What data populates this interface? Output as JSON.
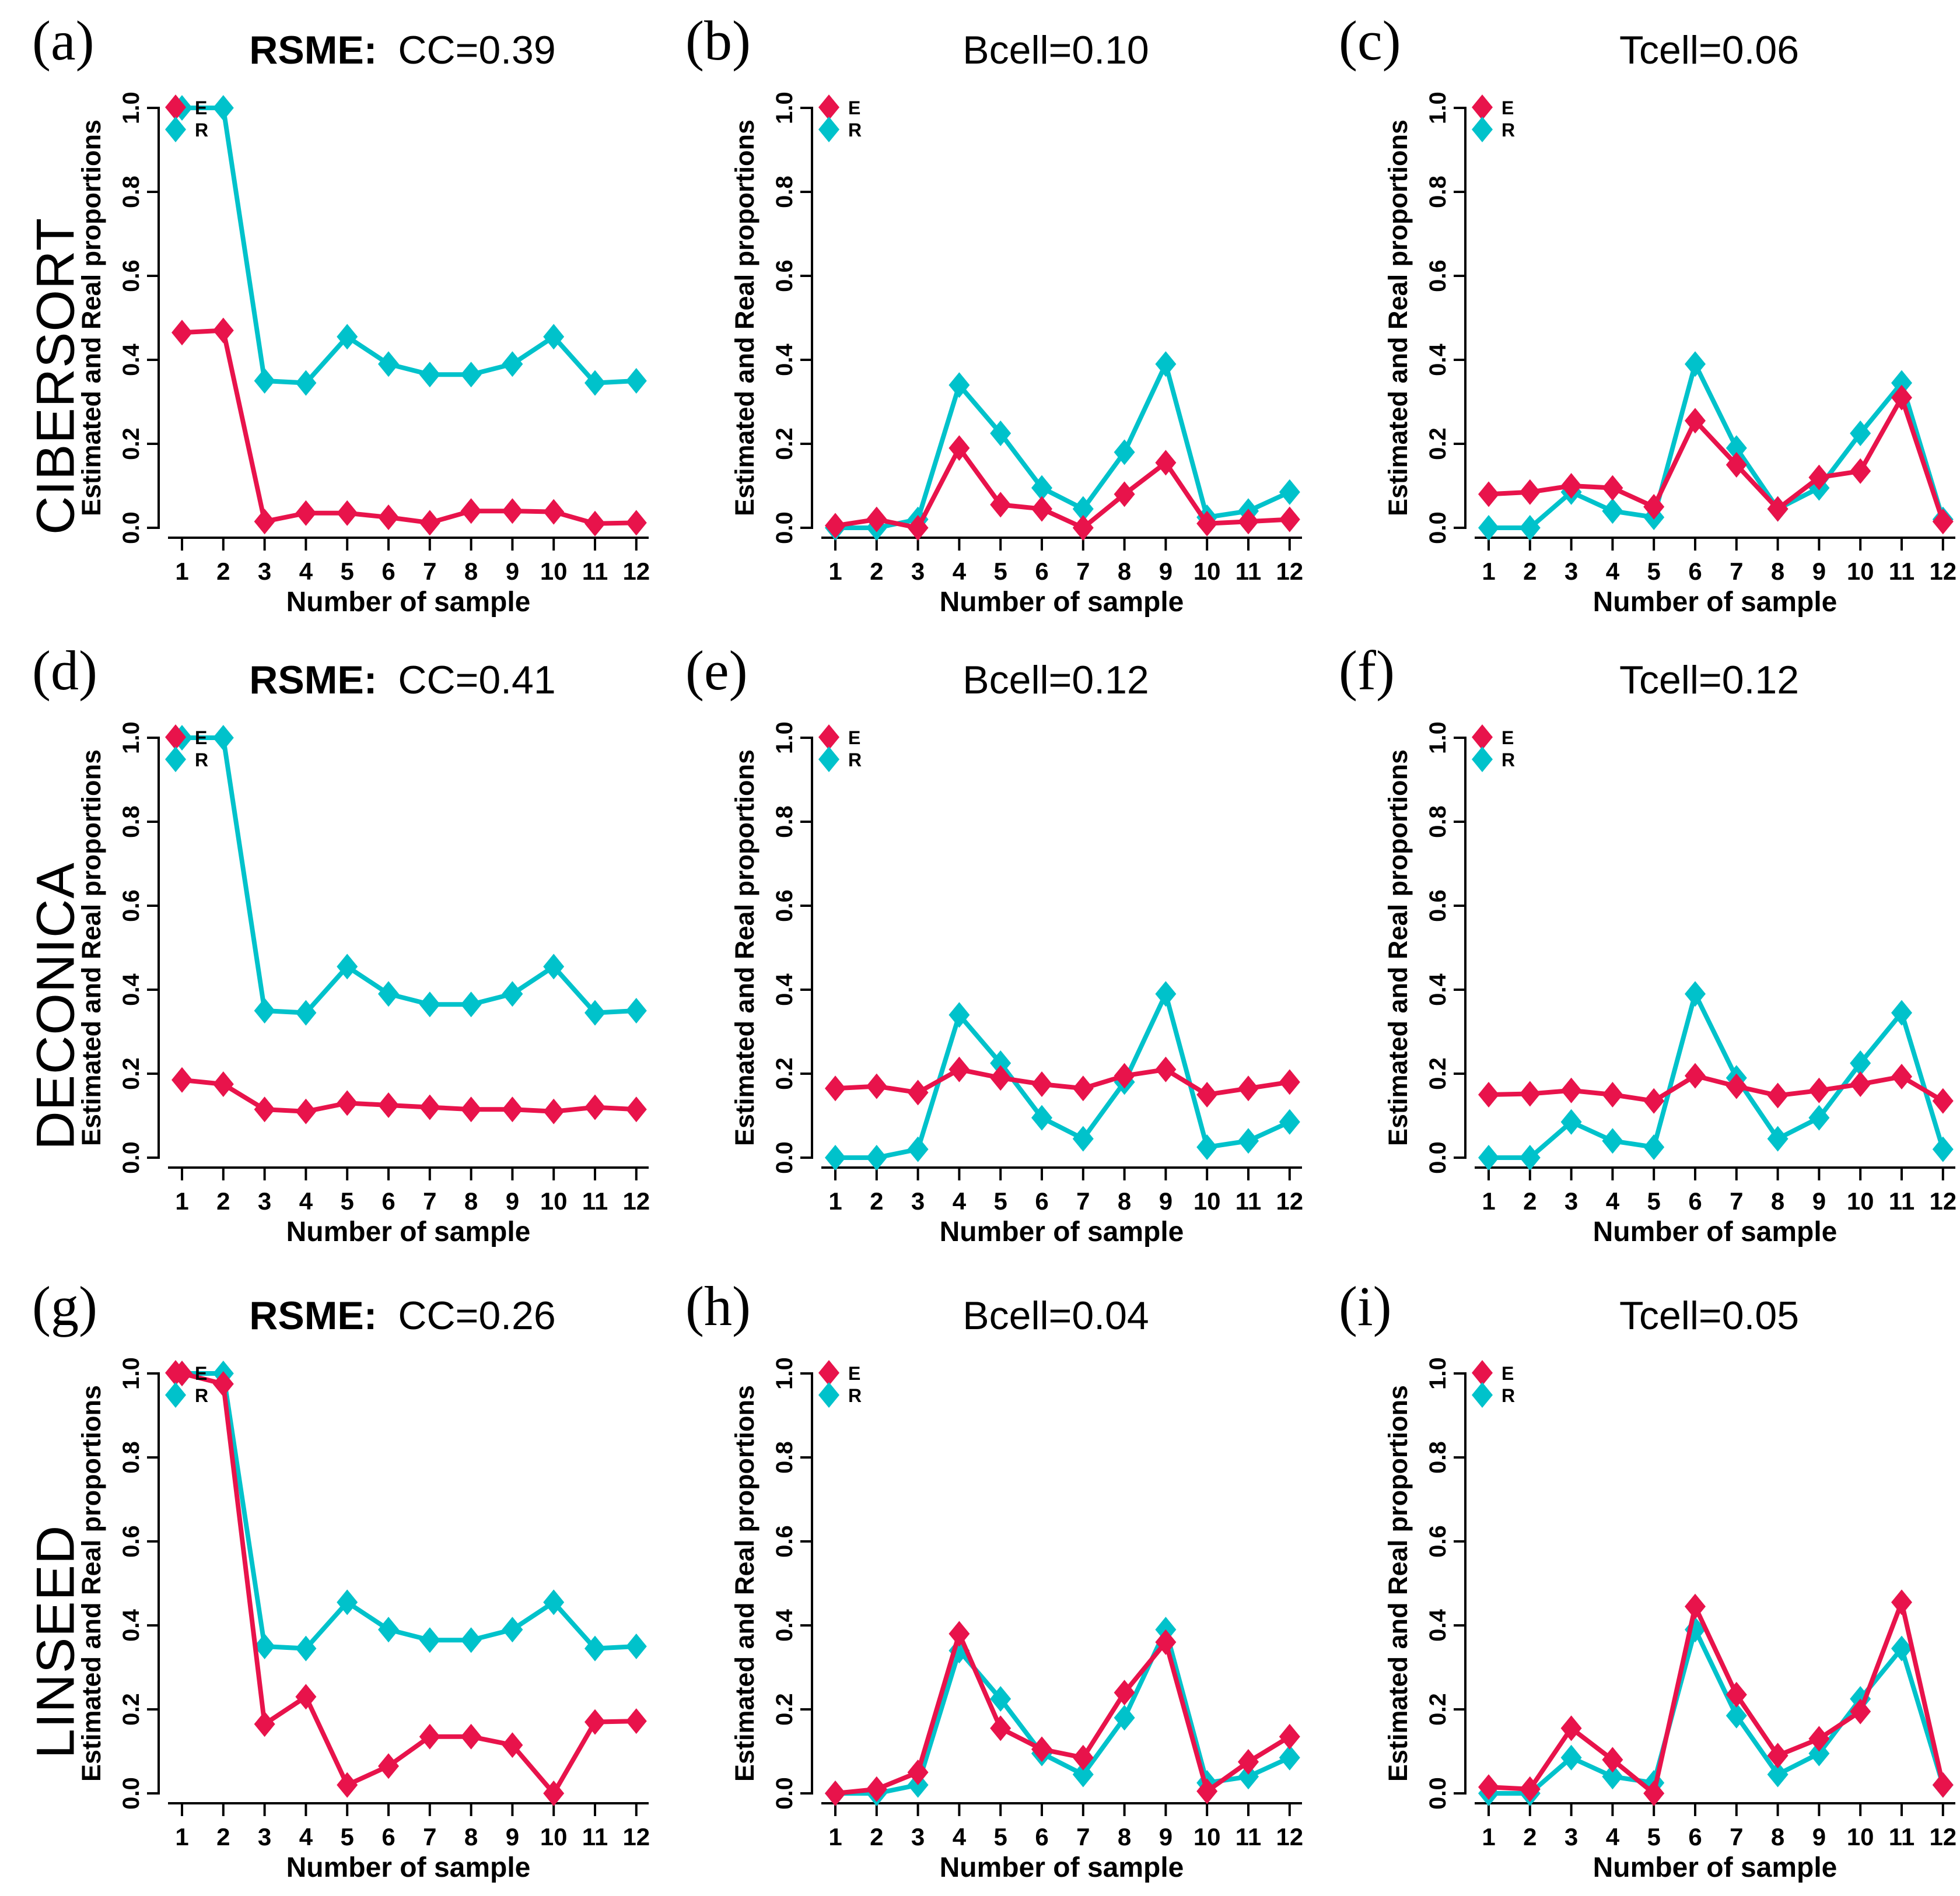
{
  "figure": {
    "background": "#ffffff",
    "colors": {
      "estimated": "#e8134b",
      "real": "#00c2cb",
      "text": "#000000"
    },
    "legend": [
      {
        "label": "E",
        "series": "estimated"
      },
      {
        "label": "R",
        "series": "real"
      }
    ],
    "axes": {
      "y_label": "Estimated and Real proportions",
      "x_label": "Number of sample",
      "y_ticks": [
        "0.0",
        "0.2",
        "0.4",
        "0.6",
        "0.8",
        "1.0"
      ],
      "x_ticks": [
        "1",
        "2",
        "3",
        "4",
        "5",
        "6",
        "7",
        "8",
        "9",
        "10",
        "11",
        "12"
      ],
      "y_range": [
        0,
        1
      ]
    },
    "rows": [
      {
        "label": "CIBERSORT"
      },
      {
        "label": "DECONICA"
      },
      {
        "label": "LINSEED"
      }
    ]
  },
  "chart_data": [
    {
      "id": "a",
      "letter": "(a)",
      "row": "CIBERSORT",
      "type": "line",
      "title_prefix": "RSME:",
      "title": "CC=0.39",
      "x": [
        1,
        2,
        3,
        4,
        5,
        6,
        7,
        8,
        9,
        10,
        11,
        12
      ],
      "xlabel": "Number of sample",
      "ylabel": "Estimated and Real proportions",
      "ylim": [
        0,
        1
      ],
      "legend_position": "top-left",
      "grid": false,
      "series": [
        {
          "name": "E",
          "color_key": "estimated",
          "values": [
            0.465,
            0.47,
            0.015,
            0.035,
            0.035,
            0.025,
            0.012,
            0.04,
            0.04,
            0.038,
            0.01,
            0.012
          ]
        },
        {
          "name": "R",
          "color_key": "real",
          "values": [
            1.0,
            1.0,
            0.35,
            0.345,
            0.455,
            0.39,
            0.365,
            0.365,
            0.39,
            0.455,
            0.345,
            0.35
          ]
        }
      ]
    },
    {
      "id": "b",
      "letter": "(b)",
      "row": "CIBERSORT",
      "type": "line",
      "title_prefix": "",
      "title": "Bcell=0.10",
      "x": [
        1,
        2,
        3,
        4,
        5,
        6,
        7,
        8,
        9,
        10,
        11,
        12
      ],
      "xlabel": "Number of sample",
      "ylabel": "Estimated and Real proportions",
      "ylim": [
        0,
        1
      ],
      "legend_position": "top-left",
      "grid": false,
      "series": [
        {
          "name": "E",
          "color_key": "estimated",
          "values": [
            0.005,
            0.02,
            0.0,
            0.19,
            0.055,
            0.045,
            0.0,
            0.08,
            0.155,
            0.01,
            0.015,
            0.02
          ]
        },
        {
          "name": "R",
          "color_key": "real",
          "values": [
            0.0,
            0.0,
            0.02,
            0.34,
            0.225,
            0.095,
            0.045,
            0.18,
            0.39,
            0.025,
            0.04,
            0.085
          ]
        }
      ]
    },
    {
      "id": "c",
      "letter": "(c)",
      "row": "CIBERSORT",
      "type": "line",
      "title_prefix": "",
      "title": "Tcell=0.06",
      "x": [
        1,
        2,
        3,
        4,
        5,
        6,
        7,
        8,
        9,
        10,
        11,
        12
      ],
      "xlabel": "Number of sample",
      "ylabel": "Estimated and Real proportions",
      "ylim": [
        0,
        1
      ],
      "legend_position": "top-left",
      "grid": false,
      "series": [
        {
          "name": "E",
          "color_key": "estimated",
          "values": [
            0.08,
            0.085,
            0.1,
            0.095,
            0.05,
            0.255,
            0.15,
            0.045,
            0.12,
            0.135,
            0.31,
            0.015
          ]
        },
        {
          "name": "R",
          "color_key": "real",
          "values": [
            0.0,
            0.0,
            0.085,
            0.04,
            0.025,
            0.39,
            0.19,
            0.045,
            0.095,
            0.225,
            0.345,
            0.02
          ]
        }
      ]
    },
    {
      "id": "d",
      "letter": "(d)",
      "row": "DECONICA",
      "type": "line",
      "title_prefix": "RSME:",
      "title": "CC=0.41",
      "x": [
        1,
        2,
        3,
        4,
        5,
        6,
        7,
        8,
        9,
        10,
        11,
        12
      ],
      "xlabel": "Number of sample",
      "ylabel": "Estimated and Real proportions",
      "ylim": [
        0,
        1
      ],
      "legend_position": "top-left",
      "grid": false,
      "series": [
        {
          "name": "E",
          "color_key": "estimated",
          "values": [
            0.185,
            0.175,
            0.115,
            0.11,
            0.13,
            0.125,
            0.12,
            0.115,
            0.115,
            0.11,
            0.12,
            0.115
          ]
        },
        {
          "name": "R",
          "color_key": "real",
          "values": [
            1.0,
            1.0,
            0.35,
            0.345,
            0.455,
            0.39,
            0.365,
            0.365,
            0.39,
            0.455,
            0.345,
            0.35
          ]
        }
      ]
    },
    {
      "id": "e",
      "letter": "(e)",
      "row": "DECONICA",
      "type": "line",
      "title_prefix": "",
      "title": "Bcell=0.12",
      "x": [
        1,
        2,
        3,
        4,
        5,
        6,
        7,
        8,
        9,
        10,
        11,
        12
      ],
      "xlabel": "Number of sample",
      "ylabel": "Estimated and Real proportions",
      "ylim": [
        0,
        1
      ],
      "legend_position": "top-left",
      "grid": false,
      "series": [
        {
          "name": "E",
          "color_key": "estimated",
          "values": [
            0.165,
            0.17,
            0.155,
            0.21,
            0.19,
            0.175,
            0.165,
            0.195,
            0.21,
            0.15,
            0.165,
            0.18
          ]
        },
        {
          "name": "R",
          "color_key": "real",
          "values": [
            0.0,
            0.0,
            0.02,
            0.34,
            0.225,
            0.095,
            0.045,
            0.18,
            0.39,
            0.025,
            0.04,
            0.085
          ]
        }
      ]
    },
    {
      "id": "f",
      "letter": "(f)",
      "row": "DECONICA",
      "type": "line",
      "title_prefix": "",
      "title": "Tcell=0.12",
      "x": [
        1,
        2,
        3,
        4,
        5,
        6,
        7,
        8,
        9,
        10,
        11,
        12
      ],
      "xlabel": "Number of sample",
      "ylabel": "Estimated and Real proportions",
      "ylim": [
        0,
        1
      ],
      "legend_position": "top-left",
      "grid": false,
      "series": [
        {
          "name": "E",
          "color_key": "estimated",
          "values": [
            0.15,
            0.152,
            0.16,
            0.15,
            0.135,
            0.195,
            0.17,
            0.148,
            0.16,
            0.175,
            0.193,
            0.135
          ]
        },
        {
          "name": "R",
          "color_key": "real",
          "values": [
            0.0,
            0.0,
            0.085,
            0.04,
            0.025,
            0.39,
            0.19,
            0.045,
            0.095,
            0.225,
            0.345,
            0.02
          ]
        }
      ]
    },
    {
      "id": "g",
      "letter": "(g)",
      "row": "LINSEED",
      "type": "line",
      "title_prefix": "RSME:",
      "title": "CC=0.26",
      "x": [
        1,
        2,
        3,
        4,
        5,
        6,
        7,
        8,
        9,
        10,
        11,
        12
      ],
      "xlabel": "Number of sample",
      "ylabel": "Estimated and Real proportions",
      "ylim": [
        0,
        1
      ],
      "legend_position": "top-left",
      "grid": false,
      "series": [
        {
          "name": "E",
          "color_key": "estimated",
          "values": [
            1.0,
            0.975,
            0.165,
            0.23,
            0.02,
            0.065,
            0.135,
            0.135,
            0.115,
            0.0,
            0.17,
            0.172
          ]
        },
        {
          "name": "R",
          "color_key": "real",
          "values": [
            1.0,
            1.0,
            0.35,
            0.345,
            0.455,
            0.39,
            0.365,
            0.365,
            0.39,
            0.455,
            0.345,
            0.35
          ]
        }
      ]
    },
    {
      "id": "h",
      "letter": "(h)",
      "row": "LINSEED",
      "type": "line",
      "title_prefix": "",
      "title": "Bcell=0.04",
      "x": [
        1,
        2,
        3,
        4,
        5,
        6,
        7,
        8,
        9,
        10,
        11,
        12
      ],
      "xlabel": "Number of sample",
      "ylabel": "Estimated and Real proportions",
      "ylim": [
        0,
        1
      ],
      "legend_position": "top-left",
      "grid": false,
      "series": [
        {
          "name": "E",
          "color_key": "estimated",
          "values": [
            0.0,
            0.01,
            0.05,
            0.38,
            0.155,
            0.105,
            0.085,
            0.24,
            0.36,
            0.005,
            0.075,
            0.135
          ]
        },
        {
          "name": "R",
          "color_key": "real",
          "values": [
            0.0,
            0.0,
            0.02,
            0.34,
            0.225,
            0.095,
            0.045,
            0.18,
            0.39,
            0.025,
            0.04,
            0.085
          ]
        }
      ]
    },
    {
      "id": "i",
      "letter": "(i)",
      "row": "LINSEED",
      "type": "line",
      "title_prefix": "",
      "title": "Tcell=0.05",
      "x": [
        1,
        2,
        3,
        4,
        5,
        6,
        7,
        8,
        9,
        10,
        11,
        12
      ],
      "xlabel": "Number of sample",
      "ylabel": "Estimated and Real proportions",
      "ylim": [
        0,
        1
      ],
      "legend_position": "top-left",
      "grid": false,
      "series": [
        {
          "name": "E",
          "color_key": "estimated",
          "values": [
            0.015,
            0.01,
            0.155,
            0.08,
            0.0,
            0.445,
            0.235,
            0.09,
            0.13,
            0.195,
            0.455,
            0.02
          ]
        },
        {
          "name": "R",
          "color_key": "real",
          "values": [
            0.0,
            0.0,
            0.085,
            0.04,
            0.025,
            0.39,
            0.185,
            0.045,
            0.095,
            0.225,
            0.345,
            0.02
          ]
        }
      ]
    }
  ]
}
